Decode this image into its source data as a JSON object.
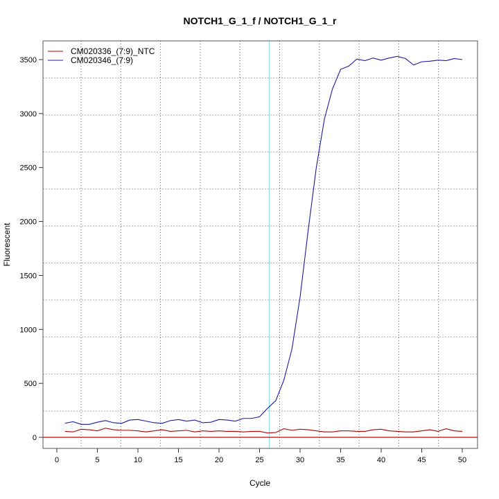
{
  "chart_data": {
    "type": "line",
    "title": "NOTCH1_G_1_f / NOTCH1_G_1_r",
    "xlabel": "Cycle",
    "ylabel": "Fluorescent",
    "xlim": [
      -2,
      52
    ],
    "ylim": [
      -100,
      3650
    ],
    "xticks": [
      0,
      5,
      10,
      15,
      20,
      25,
      30,
      35,
      40,
      45,
      50
    ],
    "yticks": [
      0,
      500,
      1000,
      1500,
      2000,
      2500,
      3000,
      3500
    ],
    "grid": true,
    "legend_position": "top-left",
    "threshold": {
      "value": 0,
      "color": "#cc0000"
    },
    "cycle_marker": {
      "value": 26.2,
      "color": "#88dde8"
    },
    "x": [
      1,
      2,
      3,
      4,
      5,
      6,
      7,
      8,
      9,
      10,
      11,
      12,
      13,
      14,
      15,
      16,
      17,
      18,
      19,
      20,
      21,
      22,
      23,
      24,
      25,
      26,
      27,
      28,
      29,
      30,
      31,
      32,
      33,
      34,
      35,
      36,
      37,
      38,
      39,
      40,
      41,
      42,
      43,
      44,
      45,
      46,
      47,
      48,
      49,
      50
    ],
    "series": [
      {
        "name": "CM020336_(7:9)_NTC",
        "color": "#aa0000",
        "values": [
          55,
          50,
          75,
          70,
          60,
          85,
          70,
          65,
          65,
          60,
          50,
          60,
          70,
          55,
          60,
          65,
          50,
          60,
          55,
          60,
          55,
          55,
          50,
          55,
          55,
          40,
          45,
          80,
          65,
          75,
          70,
          60,
          50,
          50,
          60,
          60,
          55,
          55,
          70,
          75,
          60,
          55,
          50,
          50,
          60,
          70,
          55,
          80,
          60,
          55
        ]
      },
      {
        "name": "CM020346_(7:9)",
        "color": "#1a1aa0",
        "values": [
          130,
          145,
          120,
          120,
          140,
          155,
          135,
          130,
          160,
          165,
          150,
          135,
          130,
          155,
          165,
          150,
          160,
          135,
          140,
          165,
          160,
          150,
          175,
          175,
          190,
          270,
          340,
          530,
          820,
          1300,
          1920,
          2500,
          2950,
          3230,
          3410,
          3440,
          3505,
          3490,
          3515,
          3495,
          3515,
          3530,
          3510,
          3450,
          3480,
          3485,
          3495,
          3490,
          3510,
          3500
        ]
      }
    ]
  }
}
